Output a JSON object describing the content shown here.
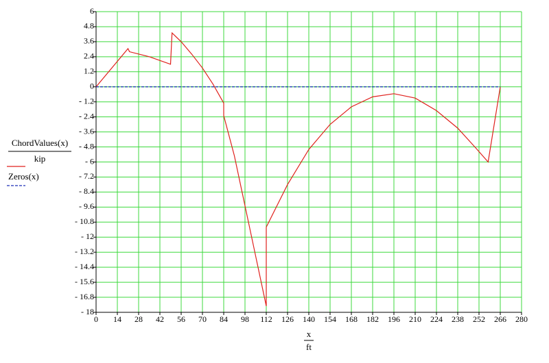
{
  "chart_data": {
    "type": "line",
    "xlabel": "x",
    "xlabel_unit": "ft",
    "xlim": [
      0,
      280
    ],
    "xticks": [
      0,
      14,
      28,
      42,
      56,
      70,
      84,
      98,
      112,
      126,
      140,
      154,
      168,
      182,
      196,
      210,
      224,
      238,
      252,
      266,
      280
    ],
    "ylim": [
      -18,
      6
    ],
    "yticks": [
      6,
      4.8,
      3.6,
      2.4,
      1.2,
      0,
      {
        "value": -1.2,
        "label": "- 1.2"
      },
      {
        "value": -2.4,
        "label": "- 2.4"
      },
      {
        "value": -3.6,
        "label": "- 3.6"
      },
      {
        "value": -4.8,
        "label": "- 4.8"
      },
      {
        "value": -6,
        "label": "- 6"
      },
      {
        "value": -7.2,
        "label": "- 7.2"
      },
      {
        "value": -8.4,
        "label": "- 8.4"
      },
      {
        "value": -9.6,
        "label": "- 9.6"
      },
      {
        "value": -10.8,
        "label": "- 10.8"
      },
      {
        "value": -12,
        "label": "- 12"
      },
      {
        "value": -13.2,
        "label": "- 13.2"
      },
      {
        "value": -14.4,
        "label": "- 14.4"
      },
      {
        "value": -15.6,
        "label": "- 15.6"
      },
      {
        "value": -16.8,
        "label": "- 16.8"
      },
      {
        "value": -18,
        "label": "- 18"
      }
    ],
    "grid": true,
    "grid_color": "#3cd93c",
    "series": [
      {
        "name": "ChordValues(x)",
        "unit": "kip",
        "color": "#e0201c",
        "dash": false,
        "x": [
          0,
          21,
          22,
          35,
          49,
          50,
          56,
          63,
          70,
          77,
          84,
          84,
          91,
          98,
          105,
          112,
          112,
          126,
          140,
          154,
          168,
          182,
          196,
          210,
          224,
          238,
          250,
          258,
          266
        ],
        "values": [
          0,
          3.05,
          2.8,
          2.4,
          1.8,
          4.3,
          3.6,
          2.6,
          1.5,
          0.2,
          -1.3,
          -2.3,
          -5.5,
          -9.5,
          -13.5,
          -17.5,
          -11.2,
          -7.8,
          -5,
          -3,
          -1.6,
          -0.8,
          -0.55,
          -0.9,
          -1.9,
          -3.3,
          -4.9,
          -6,
          0
        ]
      },
      {
        "name": "Zeros(x)",
        "color": "#1c2fb8",
        "dash": true,
        "x": [
          0,
          266
        ],
        "values": [
          0,
          0
        ]
      }
    ]
  }
}
